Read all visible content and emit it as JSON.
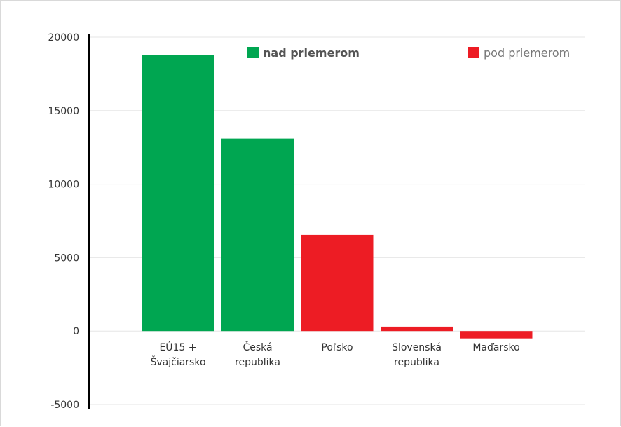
{
  "chart_data": {
    "type": "bar",
    "title": "",
    "xlabel": "",
    "ylabel": "",
    "ylim": [
      -5000,
      20000
    ],
    "yticks": [
      20000,
      15000,
      10000,
      5000,
      0,
      -5000
    ],
    "ytick_labels": [
      "20000",
      "15000",
      "10000",
      "5000",
      "0",
      "-5000"
    ],
    "grid": true,
    "legend_position": "top",
    "categories": [
      [
        "EÚ15 +",
        "Švajčiarsko"
      ],
      [
        "Česká",
        "republika"
      ],
      [
        "Poľsko"
      ],
      [
        "Slovenská",
        "republika"
      ],
      [
        "Maďarsko"
      ]
    ],
    "values": [
      18800,
      13100,
      6550,
      300,
      -500
    ],
    "groups": [
      "nad",
      "nad",
      "pod",
      "pod",
      "pod"
    ],
    "legend": [
      {
        "key": "nad",
        "label": "nad priemerom",
        "color": "#00a651",
        "text_color": "#555555",
        "bold": true
      },
      {
        "key": "pod",
        "label": "pod priemerom",
        "color": "#ed1c24",
        "text_color": "#777777",
        "bold": false
      }
    ],
    "colors": {
      "nad": "#00a651",
      "pod": "#ed1c24",
      "grid": "#e6e6e6",
      "axis": "#000000"
    }
  }
}
